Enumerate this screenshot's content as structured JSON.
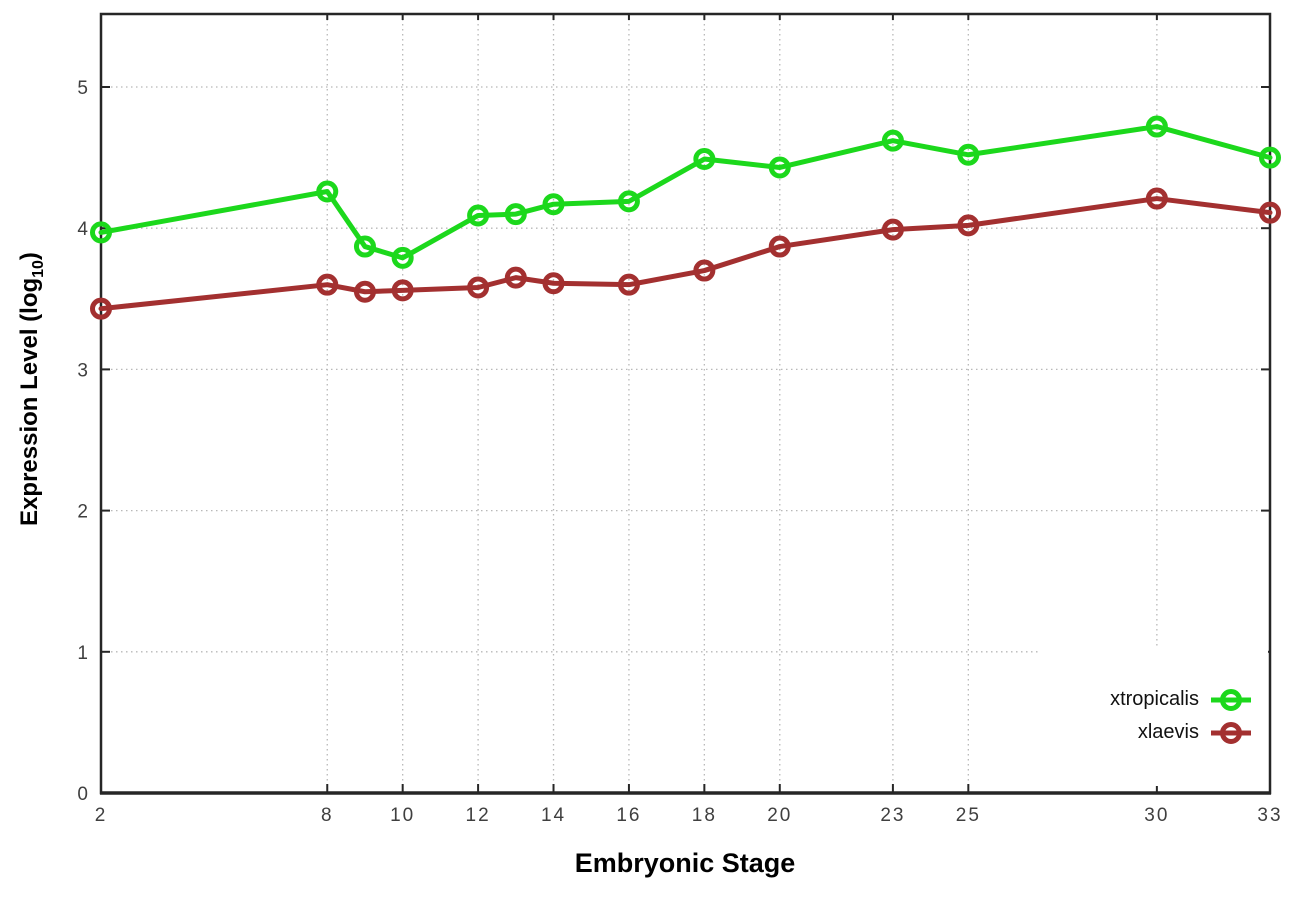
{
  "page": {
    "background": "#ffffff"
  },
  "chart_data": {
    "type": "line",
    "title": "",
    "xlabel": "Embryonic Stage",
    "ylabel": "Expression Level (log10)",
    "ylabel_parts": {
      "main": "Expression Level (log",
      "sub": "10",
      "close": ")"
    },
    "x": [
      2,
      8,
      9,
      10,
      12,
      13,
      14,
      16,
      18,
      20,
      23,
      25,
      30,
      33
    ],
    "series": [
      {
        "name": "xtropicalis",
        "color": "#1cd81c",
        "values": [
          3.97,
          4.26,
          3.87,
          3.79,
          4.09,
          4.1,
          4.17,
          4.19,
          4.49,
          4.43,
          4.62,
          4.52,
          4.72,
          4.5
        ]
      },
      {
        "name": "xlaevis",
        "color": "#a33030",
        "values": [
          3.43,
          3.6,
          3.55,
          3.56,
          3.58,
          3.65,
          3.61,
          3.6,
          3.7,
          3.87,
          3.99,
          4.02,
          4.21,
          4.11
        ]
      }
    ],
    "xticks": [
      2,
      8,
      10,
      12,
      14,
      16,
      18,
      20,
      23,
      25,
      30,
      33
    ],
    "yticks": [
      0,
      1,
      2,
      3,
      4,
      5
    ],
    "xlim": [
      2,
      33
    ],
    "ylim": [
      0,
      5.5
    ],
    "grid": true,
    "marker": "open-circle",
    "legend_position": "bottom-right",
    "colors": {
      "grid": "#b8b8b8",
      "axis": "#262626",
      "tick_labels": "#3f3f3f",
      "background": "#ffffff"
    }
  }
}
